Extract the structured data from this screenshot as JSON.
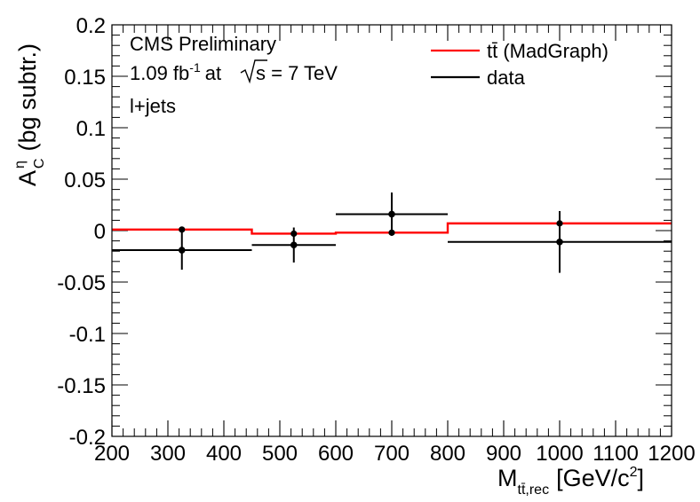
{
  "chart_data": {
    "type": "line",
    "xlabel": {
      "main": "M",
      "sub": "tt̄,rec",
      "unit_pre": "[GeV/c",
      "unit_sup": "2",
      "unit_post": "]"
    },
    "ylabel": {
      "main": "A",
      "sup": "η",
      "sub": "C",
      "suffix": "(bg subtr.)"
    },
    "xlim": [
      200,
      1200
    ],
    "ylim": [
      -0.2,
      0.2
    ],
    "xticks": [
      {
        "v": 200,
        "label": "200"
      },
      {
        "v": 300,
        "label": "300"
      },
      {
        "v": 400,
        "label": "400"
      },
      {
        "v": 500,
        "label": "500"
      },
      {
        "v": 600,
        "label": "600"
      },
      {
        "v": 700,
        "label": "700"
      },
      {
        "v": 800,
        "label": "800"
      },
      {
        "v": 900,
        "label": "900"
      },
      {
        "v": 1000,
        "label": "1000"
      },
      {
        "v": 1100,
        "label": "1100"
      },
      {
        "v": 1200,
        "label": "1200"
      }
    ],
    "yticks": [
      {
        "v": -0.2,
        "label": "-0.2"
      },
      {
        "v": -0.15,
        "label": "-0.15"
      },
      {
        "v": -0.1,
        "label": "-0.1"
      },
      {
        "v": -0.05,
        "label": "-0.05"
      },
      {
        "v": 0,
        "label": "0"
      },
      {
        "v": 0.05,
        "label": "0.05"
      },
      {
        "v": 0.1,
        "label": "0.1"
      },
      {
        "v": 0.15,
        "label": "0.15"
      },
      {
        "v": 0.2,
        "label": "0.2"
      }
    ],
    "annotations": {
      "experiment": "CMS Preliminary",
      "lumi_value": "1.09 fb",
      "lumi_exp": "-1",
      "lumi_at": "at",
      "energy": "s = 7 TeV",
      "channel": "l+jets"
    },
    "legend": {
      "position": "top-right",
      "entries": [
        {
          "series": "madgraph",
          "label": "tt̄ (MadGraph)"
        },
        {
          "series": "data",
          "label": "data"
        }
      ]
    },
    "series": [
      {
        "name": "tt̄ (MadGraph)",
        "key": "madgraph",
        "color": "#ff0000",
        "bins": [
          {
            "lo": 200,
            "hi": 450,
            "y": 0.001,
            "center": 325,
            "err": 0.0
          },
          {
            "lo": 450,
            "hi": 600,
            "y": -0.003,
            "center": 525,
            "err": 0.0
          },
          {
            "lo": 600,
            "hi": 800,
            "y": -0.002,
            "center": 700,
            "err": 0.0
          },
          {
            "lo": 800,
            "hi": 1200,
            "y": 0.007,
            "center": 1000,
            "err": 0.0
          }
        ]
      },
      {
        "name": "data",
        "key": "data",
        "color": "#000000",
        "bins": [
          {
            "lo": 200,
            "hi": 450,
            "y": -0.019,
            "center": 325,
            "err": 0.019
          },
          {
            "lo": 450,
            "hi": 600,
            "y": -0.014,
            "center": 525,
            "err": 0.017
          },
          {
            "lo": 600,
            "hi": 800,
            "y": 0.016,
            "center": 700,
            "err": 0.021
          },
          {
            "lo": 800,
            "hi": 1200,
            "y": -0.011,
            "center": 1000,
            "err": 0.03
          }
        ]
      }
    ]
  }
}
